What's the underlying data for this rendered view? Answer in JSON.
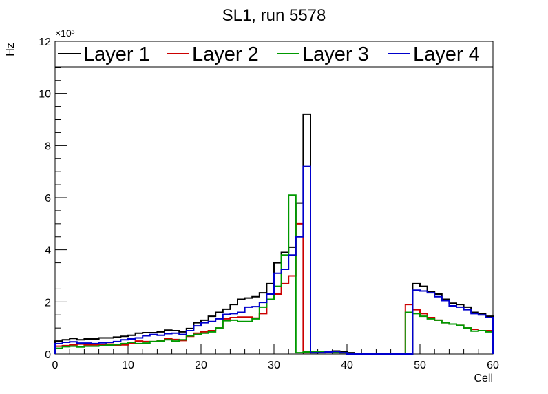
{
  "chart_data": {
    "type": "histogram",
    "title": "SL1, run 5578",
    "xlabel": "Cell",
    "ylabel": "Hz",
    "y_exponent_label": "×10³",
    "y_multiplier": 1000,
    "xlim": [
      0,
      60
    ],
    "ylim": [
      0,
      12
    ],
    "x_ticks": [
      0,
      10,
      20,
      30,
      40,
      50,
      60
    ],
    "y_ticks": [
      0,
      2,
      4,
      6,
      8,
      10,
      12
    ],
    "grid": false,
    "legend_position": "top",
    "bins": [
      0,
      1,
      2,
      3,
      4,
      5,
      6,
      7,
      8,
      9,
      10,
      11,
      12,
      13,
      14,
      15,
      16,
      17,
      18,
      19,
      20,
      21,
      22,
      23,
      24,
      25,
      26,
      27,
      28,
      29,
      30,
      31,
      32,
      33,
      34,
      35,
      36,
      37,
      38,
      39,
      40,
      41,
      42,
      43,
      44,
      45,
      46,
      47,
      48,
      49,
      50,
      51,
      52,
      53,
      54,
      55,
      56,
      57,
      58,
      59
    ],
    "series": [
      {
        "name": "Layer 1",
        "color": "#000000",
        "values": [
          0.5,
          0.55,
          0.6,
          0.55,
          0.58,
          0.58,
          0.62,
          0.62,
          0.65,
          0.68,
          0.72,
          0.8,
          0.82,
          0.82,
          0.85,
          0.92,
          0.9,
          0.85,
          0.98,
          1.2,
          1.3,
          1.45,
          1.6,
          1.72,
          1.9,
          2.1,
          2.15,
          2.2,
          2.35,
          2.7,
          3.5,
          3.9,
          4.1,
          5.8,
          9.2,
          0.05,
          0.08,
          0.1,
          0.12,
          0.1,
          0.05,
          0.0,
          0.0,
          0.0,
          0.0,
          0.0,
          0.0,
          0.0,
          0.0,
          2.7,
          2.6,
          2.4,
          2.3,
          2.1,
          1.95,
          1.9,
          1.8,
          1.6,
          1.55,
          1.45
        ]
      },
      {
        "name": "Layer 2",
        "color": "#cc0000",
        "values": [
          0.3,
          0.32,
          0.35,
          0.38,
          0.35,
          0.35,
          0.36,
          0.38,
          0.33,
          0.35,
          0.42,
          0.5,
          0.48,
          0.48,
          0.52,
          0.58,
          0.56,
          0.52,
          0.68,
          0.8,
          0.85,
          0.9,
          1.0,
          1.35,
          1.4,
          1.42,
          1.42,
          1.38,
          1.55,
          2.1,
          2.3,
          2.7,
          3.0,
          5.0,
          0.05,
          0.08,
          0.1,
          0.08,
          0.08,
          0.05,
          0.0,
          0.0,
          0.0,
          0.0,
          0.0,
          0.0,
          0.0,
          0.0,
          1.9,
          1.7,
          1.55,
          1.4,
          1.3,
          1.2,
          1.15,
          1.1,
          1.0,
          0.95,
          0.9,
          0.9
        ]
      },
      {
        "name": "Layer 3",
        "color": "#009900",
        "values": [
          0.22,
          0.28,
          0.3,
          0.27,
          0.3,
          0.3,
          0.32,
          0.34,
          0.36,
          0.4,
          0.45,
          0.4,
          0.42,
          0.48,
          0.5,
          0.55,
          0.5,
          0.55,
          0.7,
          0.75,
          0.8,
          0.85,
          1.0,
          1.28,
          1.3,
          1.25,
          1.25,
          1.35,
          1.8,
          2.1,
          2.6,
          3.8,
          6.1,
          0.05,
          0.08,
          0.08,
          0.1,
          0.08,
          0.05,
          0.05,
          0.0,
          0.0,
          0.0,
          0.0,
          0.0,
          0.0,
          0.0,
          0.0,
          1.6,
          1.55,
          1.45,
          1.35,
          1.3,
          1.2,
          1.15,
          1.1,
          1.0,
          0.88,
          0.9,
          0.85
        ]
      },
      {
        "name": "Layer 4",
        "color": "#0000cc",
        "values": [
          0.4,
          0.45,
          0.47,
          0.42,
          0.42,
          0.4,
          0.43,
          0.45,
          0.48,
          0.55,
          0.58,
          0.62,
          0.7,
          0.75,
          0.72,
          0.78,
          0.8,
          0.75,
          0.9,
          1.08,
          1.2,
          1.25,
          1.35,
          1.52,
          1.55,
          1.6,
          1.8,
          1.82,
          1.98,
          2.3,
          3.1,
          3.25,
          3.8,
          4.5,
          7.2,
          0.05,
          0.05,
          0.08,
          0.1,
          0.05,
          0.0,
          0.0,
          0.0,
          0.0,
          0.0,
          0.0,
          0.0,
          0.0,
          0.0,
          2.45,
          2.42,
          2.35,
          2.2,
          2.05,
          1.85,
          1.8,
          1.7,
          1.55,
          1.5,
          1.4
        ]
      }
    ]
  }
}
